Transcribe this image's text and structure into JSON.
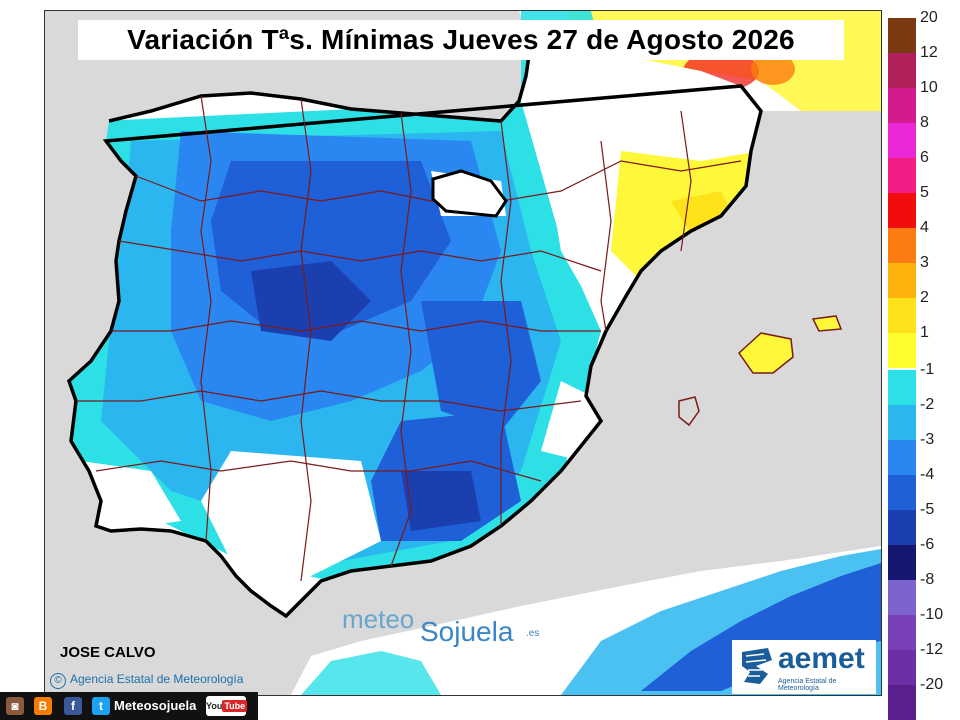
{
  "title": "Variación Tªs. Mínimas Jueves 27 de Agosto 2026",
  "author": "JOSE CALVO",
  "agency_credit": "Agencia Estatal de Meteorología",
  "watermark": {
    "part1": "meteo",
    "part2": "Sojuela",
    "part3": ".es"
  },
  "logo": {
    "name": "aemet",
    "subtitle": "Agencia Estatal de Meteorología"
  },
  "social": {
    "handle": "Meteosojuela",
    "youtube_label": "You",
    "youtube_tube": "Tube",
    "icons": [
      "instagram-icon",
      "blogger-icon",
      "facebook-icon",
      "twitter-icon"
    ]
  },
  "legend": {
    "warm": [
      {
        "label": "20",
        "color": "#7b3a12"
      },
      {
        "label": "12",
        "color": "#b0205a"
      },
      {
        "label": "10",
        "color": "#d21c8e"
      },
      {
        "label": "8",
        "color": "#ea28d8"
      },
      {
        "label": "6",
        "color": "#f21e86"
      },
      {
        "label": "5",
        "color": "#f20d0d"
      },
      {
        "label": "4",
        "color": "#fb7d12"
      },
      {
        "label": "3",
        "color": "#fdb20e"
      },
      {
        "label": "2",
        "color": "#fee31a"
      },
      {
        "label": "1",
        "color": "#fffd2e"
      }
    ],
    "cold": [
      {
        "label": "-1",
        "color": "#2de0e6"
      },
      {
        "label": "-2",
        "color": "#2bb6f0"
      },
      {
        "label": "-3",
        "color": "#2a86f0"
      },
      {
        "label": "-4",
        "color": "#1f5fd8"
      },
      {
        "label": "-5",
        "color": "#1c3fb0"
      },
      {
        "label": "-6",
        "color": "#15186e"
      },
      {
        "label": "-8",
        "color": "#7d64cc"
      },
      {
        "label": "-10",
        "color": "#7a40b8"
      },
      {
        "label": "-12",
        "color": "#6c2fa6"
      },
      {
        "label": "-20",
        "color": "#5b1f8e"
      }
    ]
  }
}
